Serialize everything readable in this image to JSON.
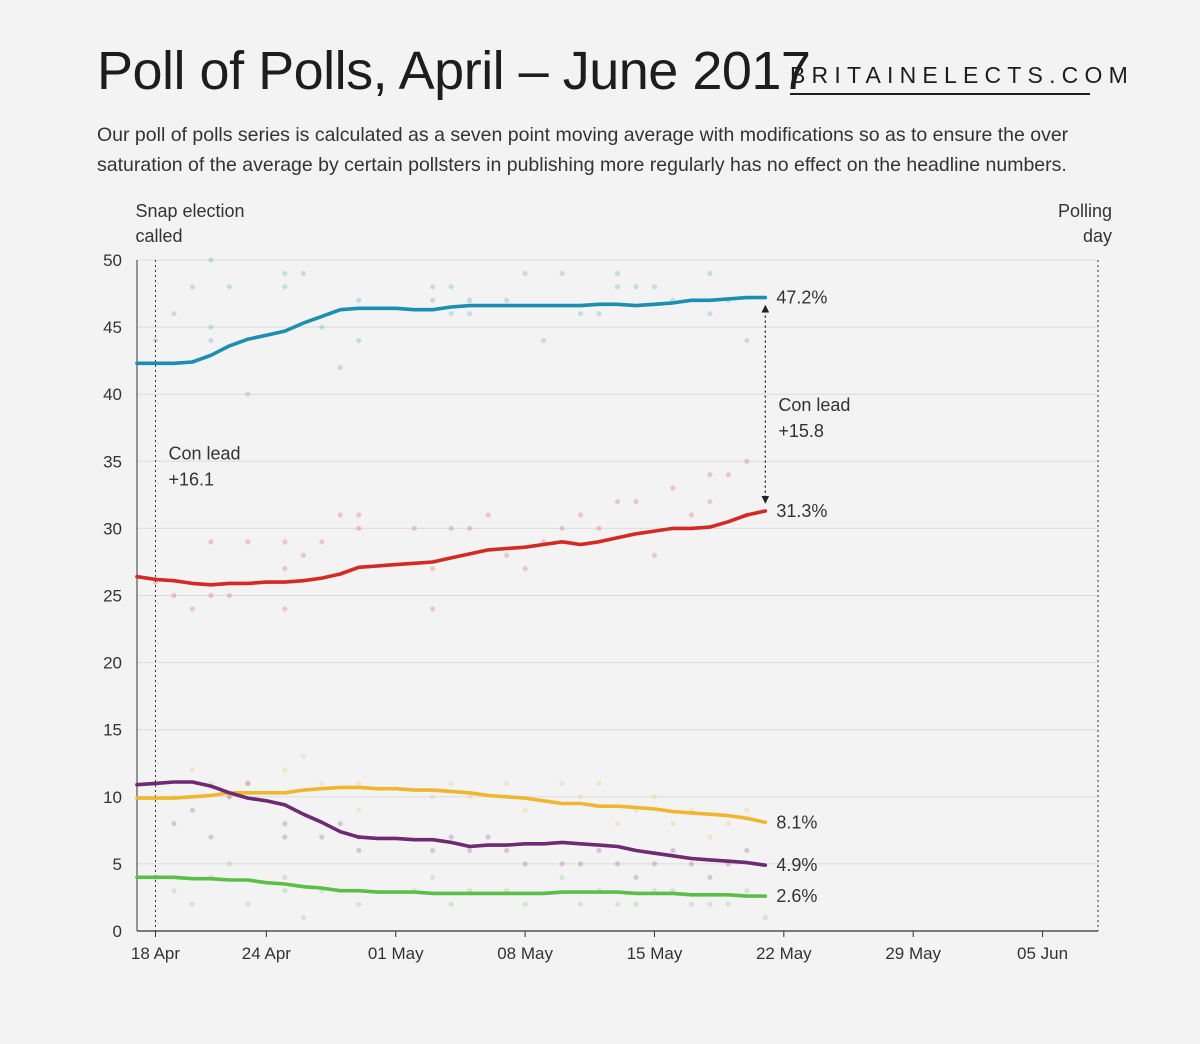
{
  "header": {
    "title": "Poll of Polls, April – June 2017",
    "brand": "BRITAINELECTS.COM",
    "subtitle": "Our poll of polls series is calculated as a seven point moving average with modifications so as to ensure the over saturation of the average by certain pollsters in publishing more regularly has no effect on the headline numbers."
  },
  "chart_data": {
    "type": "line",
    "title": "Poll of Polls, April – June 2017",
    "xlabel": "",
    "ylabel": "",
    "x_range": [
      "2017-04-17",
      "2017-06-08"
    ],
    "ylim": [
      0,
      50
    ],
    "y_ticks": [
      0,
      5,
      10,
      15,
      20,
      25,
      30,
      35,
      40,
      45,
      50
    ],
    "x_ticks": [
      {
        "date": "2017-04-18",
        "label": "18 Apr"
      },
      {
        "date": "2017-04-24",
        "label": "24 Apr"
      },
      {
        "date": "2017-05-01",
        "label": "01 May"
      },
      {
        "date": "2017-05-08",
        "label": "08 May"
      },
      {
        "date": "2017-05-15",
        "label": "15 May"
      },
      {
        "date": "2017-05-22",
        "label": "22 May"
      },
      {
        "date": "2017-05-29",
        "label": "29 May"
      },
      {
        "date": "2017-06-05",
        "label": "05 Jun"
      }
    ],
    "grid": true,
    "legend": "none",
    "dates": [
      "2017-04-17",
      "2017-04-18",
      "2017-04-19",
      "2017-04-20",
      "2017-04-21",
      "2017-04-22",
      "2017-04-23",
      "2017-04-24",
      "2017-04-25",
      "2017-04-26",
      "2017-04-27",
      "2017-04-28",
      "2017-04-29",
      "2017-04-30",
      "2017-05-01",
      "2017-05-02",
      "2017-05-03",
      "2017-05-04",
      "2017-05-05",
      "2017-05-06",
      "2017-05-07",
      "2017-05-08",
      "2017-05-09",
      "2017-05-10",
      "2017-05-11",
      "2017-05-12",
      "2017-05-13",
      "2017-05-14",
      "2017-05-15",
      "2017-05-16",
      "2017-05-17",
      "2017-05-18",
      "2017-05-19",
      "2017-05-20",
      "2017-05-21"
    ],
    "series": [
      {
        "color": "#1a8fb0",
        "end_label": "47.2%",
        "values": [
          42.3,
          42.3,
          42.3,
          42.4,
          42.9,
          43.6,
          44.1,
          44.4,
          44.7,
          45.3,
          45.8,
          46.3,
          46.4,
          46.4,
          46.4,
          46.3,
          46.3,
          46.5,
          46.6,
          46.6,
          46.6,
          46.6,
          46.6,
          46.6,
          46.6,
          46.7,
          46.7,
          46.6,
          46.7,
          46.8,
          47.0,
          47.0,
          47.1,
          47.2,
          47.2
        ]
      },
      {
        "color": "#d42a26",
        "end_label": "31.3%",
        "values": [
          26.4,
          26.2,
          26.1,
          25.9,
          25.8,
          25.9,
          25.9,
          26.0,
          26.0,
          26.1,
          26.3,
          26.6,
          27.1,
          27.2,
          27.3,
          27.4,
          27.5,
          27.8,
          28.1,
          28.4,
          28.5,
          28.6,
          28.8,
          29.0,
          28.8,
          29.0,
          29.3,
          29.6,
          29.8,
          30.0,
          30.0,
          30.1,
          30.5,
          31.0,
          31.3
        ]
      },
      {
        "color": "#f0b630",
        "end_label": "8.1%",
        "values": [
          9.9,
          9.9,
          9.9,
          10.0,
          10.1,
          10.3,
          10.3,
          10.3,
          10.3,
          10.5,
          10.6,
          10.7,
          10.7,
          10.6,
          10.6,
          10.5,
          10.5,
          10.4,
          10.3,
          10.1,
          10.0,
          9.9,
          9.7,
          9.5,
          9.5,
          9.3,
          9.3,
          9.2,
          9.1,
          8.9,
          8.8,
          8.7,
          8.6,
          8.4,
          8.1
        ]
      },
      {
        "color": "#6e2a72",
        "end_label": "4.9%",
        "values": [
          10.9,
          11.0,
          11.1,
          11.1,
          10.8,
          10.3,
          9.9,
          9.7,
          9.4,
          8.7,
          8.1,
          7.4,
          7.0,
          6.9,
          6.9,
          6.8,
          6.8,
          6.6,
          6.3,
          6.4,
          6.4,
          6.5,
          6.5,
          6.6,
          6.5,
          6.4,
          6.3,
          6.0,
          5.8,
          5.6,
          5.4,
          5.3,
          5.2,
          5.1,
          4.9
        ]
      },
      {
        "color": "#5bbf47",
        "end_label": "2.6%",
        "values": [
          4.0,
          4.0,
          4.0,
          3.9,
          3.9,
          3.8,
          3.8,
          3.6,
          3.5,
          3.3,
          3.2,
          3.0,
          3.0,
          2.9,
          2.9,
          2.9,
          2.8,
          2.8,
          2.8,
          2.8,
          2.8,
          2.8,
          2.8,
          2.9,
          2.9,
          2.9,
          2.9,
          2.8,
          2.8,
          2.8,
          2.7,
          2.7,
          2.7,
          2.6,
          2.6
        ]
      }
    ],
    "polls": [
      {
        "color": "#1a8fb0",
        "points": [
          [
            "2017-04-18",
            44
          ],
          [
            "2017-04-19",
            46
          ],
          [
            "2017-04-20",
            48
          ],
          [
            "2017-04-21",
            50
          ],
          [
            "2017-04-21",
            45
          ],
          [
            "2017-04-21",
            44
          ],
          [
            "2017-04-22",
            48
          ],
          [
            "2017-04-23",
            40
          ],
          [
            "2017-04-25",
            49
          ],
          [
            "2017-04-25",
            48
          ],
          [
            "2017-04-26",
            49
          ],
          [
            "2017-04-27",
            45
          ],
          [
            "2017-04-28",
            42
          ],
          [
            "2017-04-29",
            47
          ],
          [
            "2017-04-29",
            44
          ],
          [
            "2017-05-03",
            48
          ],
          [
            "2017-05-03",
            47
          ],
          [
            "2017-05-04",
            48
          ],
          [
            "2017-05-04",
            46
          ],
          [
            "2017-05-05",
            46
          ],
          [
            "2017-05-05",
            47
          ],
          [
            "2017-05-07",
            47
          ],
          [
            "2017-05-08",
            49
          ],
          [
            "2017-05-09",
            44
          ],
          [
            "2017-05-10",
            49
          ],
          [
            "2017-05-11",
            46
          ],
          [
            "2017-05-12",
            46
          ],
          [
            "2017-05-13",
            49
          ],
          [
            "2017-05-13",
            48
          ],
          [
            "2017-05-14",
            48
          ],
          [
            "2017-05-15",
            48
          ],
          [
            "2017-05-16",
            47
          ],
          [
            "2017-05-18",
            49
          ],
          [
            "2017-05-18",
            46
          ],
          [
            "2017-05-19",
            47
          ],
          [
            "2017-05-20",
            44
          ]
        ]
      },
      {
        "color": "#d42a26",
        "points": [
          [
            "2017-04-18",
            26
          ],
          [
            "2017-04-19",
            25
          ],
          [
            "2017-04-20",
            24
          ],
          [
            "2017-04-21",
            29
          ],
          [
            "2017-04-21",
            25
          ],
          [
            "2017-04-22",
            25
          ],
          [
            "2017-04-23",
            29
          ],
          [
            "2017-04-25",
            29
          ],
          [
            "2017-04-25",
            27
          ],
          [
            "2017-04-25",
            24
          ],
          [
            "2017-04-26",
            28
          ],
          [
            "2017-04-27",
            29
          ],
          [
            "2017-04-28",
            31
          ],
          [
            "2017-04-29",
            31
          ],
          [
            "2017-04-29",
            30
          ],
          [
            "2017-05-02",
            30
          ],
          [
            "2017-05-03",
            24
          ],
          [
            "2017-05-03",
            27
          ],
          [
            "2017-05-04",
            30
          ],
          [
            "2017-05-05",
            30
          ],
          [
            "2017-05-06",
            31
          ],
          [
            "2017-05-07",
            28
          ],
          [
            "2017-05-08",
            27
          ],
          [
            "2017-05-09",
            29
          ],
          [
            "2017-05-10",
            30
          ],
          [
            "2017-05-11",
            31
          ],
          [
            "2017-05-12",
            30
          ],
          [
            "2017-05-13",
            32
          ],
          [
            "2017-05-14",
            32
          ],
          [
            "2017-05-15",
            28
          ],
          [
            "2017-05-16",
            33
          ],
          [
            "2017-05-17",
            31
          ],
          [
            "2017-05-18",
            34
          ],
          [
            "2017-05-18",
            32
          ],
          [
            "2017-05-19",
            34
          ],
          [
            "2017-05-20",
            35
          ],
          [
            "2017-05-20",
            31
          ]
        ]
      },
      {
        "color": "#f0b630",
        "points": [
          [
            "2017-04-18",
            11
          ],
          [
            "2017-04-19",
            10
          ],
          [
            "2017-04-20",
            12
          ],
          [
            "2017-04-21",
            11
          ],
          [
            "2017-04-22",
            10
          ],
          [
            "2017-04-23",
            11
          ],
          [
            "2017-04-25",
            12
          ],
          [
            "2017-04-26",
            13
          ],
          [
            "2017-04-27",
            11
          ],
          [
            "2017-04-29",
            9
          ],
          [
            "2017-04-29",
            11
          ],
          [
            "2017-05-03",
            10
          ],
          [
            "2017-05-04",
            11
          ],
          [
            "2017-05-05",
            10
          ],
          [
            "2017-05-07",
            11
          ],
          [
            "2017-05-08",
            9
          ],
          [
            "2017-05-10",
            11
          ],
          [
            "2017-05-11",
            10
          ],
          [
            "2017-05-12",
            11
          ],
          [
            "2017-05-13",
            8
          ],
          [
            "2017-05-14",
            9
          ],
          [
            "2017-05-15",
            10
          ],
          [
            "2017-05-16",
            8
          ],
          [
            "2017-05-17",
            9
          ],
          [
            "2017-05-18",
            7
          ],
          [
            "2017-05-19",
            8
          ],
          [
            "2017-05-20",
            9
          ]
        ]
      },
      {
        "color": "#6e2a72",
        "points": [
          [
            "2017-04-18",
            11
          ],
          [
            "2017-04-19",
            8
          ],
          [
            "2017-04-20",
            9
          ],
          [
            "2017-04-21",
            7
          ],
          [
            "2017-04-22",
            10
          ],
          [
            "2017-04-23",
            11
          ],
          [
            "2017-04-25",
            8
          ],
          [
            "2017-04-25",
            7
          ],
          [
            "2017-04-27",
            7
          ],
          [
            "2017-04-28",
            8
          ],
          [
            "2017-04-29",
            6
          ],
          [
            "2017-04-29",
            7
          ],
          [
            "2017-05-03",
            6
          ],
          [
            "2017-05-04",
            7
          ],
          [
            "2017-05-05",
            6
          ],
          [
            "2017-05-06",
            7
          ],
          [
            "2017-05-07",
            6
          ],
          [
            "2017-05-08",
            5
          ],
          [
            "2017-05-10",
            5
          ],
          [
            "2017-05-11",
            5
          ],
          [
            "2017-05-12",
            6
          ],
          [
            "2017-05-13",
            5
          ],
          [
            "2017-05-14",
            4
          ],
          [
            "2017-05-15",
            5
          ],
          [
            "2017-05-16",
            6
          ],
          [
            "2017-05-17",
            5
          ],
          [
            "2017-05-18",
            4
          ],
          [
            "2017-05-19",
            5
          ],
          [
            "2017-05-20",
            6
          ]
        ]
      },
      {
        "color": "#5bbf47",
        "points": [
          [
            "2017-04-18",
            4
          ],
          [
            "2017-04-19",
            3
          ],
          [
            "2017-04-20",
            2
          ],
          [
            "2017-04-21",
            4
          ],
          [
            "2017-04-22",
            5
          ],
          [
            "2017-04-23",
            2
          ],
          [
            "2017-04-25",
            4
          ],
          [
            "2017-04-25",
            3
          ],
          [
            "2017-04-26",
            1
          ],
          [
            "2017-04-27",
            3
          ],
          [
            "2017-04-29",
            2
          ],
          [
            "2017-05-02",
            3
          ],
          [
            "2017-05-03",
            4
          ],
          [
            "2017-05-04",
            2
          ],
          [
            "2017-05-05",
            3
          ],
          [
            "2017-05-07",
            3
          ],
          [
            "2017-05-08",
            2
          ],
          [
            "2017-05-10",
            4
          ],
          [
            "2017-05-11",
            2
          ],
          [
            "2017-05-12",
            3
          ],
          [
            "2017-05-13",
            2
          ],
          [
            "2017-05-14",
            2
          ],
          [
            "2017-05-15",
            3
          ],
          [
            "2017-05-16",
            3
          ],
          [
            "2017-05-17",
            2
          ],
          [
            "2017-05-18",
            2
          ],
          [
            "2017-05-19",
            2
          ],
          [
            "2017-05-20",
            3
          ],
          [
            "2017-05-21",
            1
          ]
        ]
      }
    ],
    "markers": [
      {
        "date": "2017-04-18",
        "label": [
          "Snap election",
          "called"
        ],
        "align": "left"
      },
      {
        "date": "2017-06-08",
        "label": [
          "Polling",
          "day"
        ],
        "align": "right"
      }
    ],
    "annotations": [
      {
        "date": "2017-04-18",
        "value": 35,
        "lines": [
          "Con lead",
          "+16.1"
        ]
      },
      {
        "date": "2017-05-21",
        "value": 40,
        "lines": [
          "Con lead",
          "+15.8"
        ],
        "arrow_from": 47.2,
        "arrow_to": 31.3
      }
    ]
  }
}
